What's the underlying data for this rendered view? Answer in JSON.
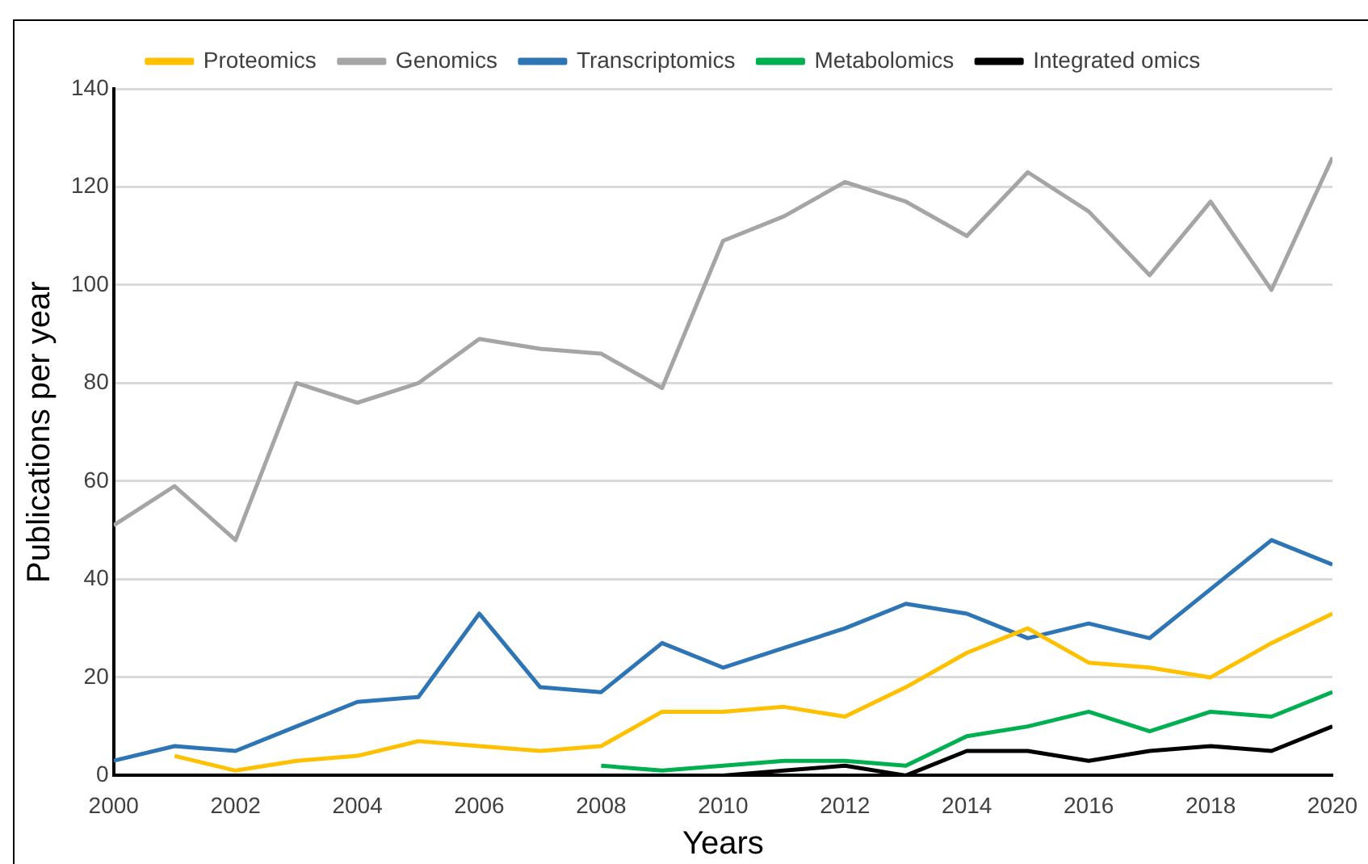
{
  "chart_data": {
    "type": "line",
    "xlabel": "Years",
    "ylabel": "Publications per year",
    "x": [
      2000,
      2001,
      2002,
      2003,
      2004,
      2005,
      2006,
      2007,
      2008,
      2009,
      2010,
      2011,
      2012,
      2013,
      2014,
      2015,
      2016,
      2017,
      2018,
      2019,
      2020
    ],
    "xlim": [
      2000,
      2020
    ],
    "xticks": [
      2000,
      2002,
      2004,
      2006,
      2008,
      2010,
      2012,
      2014,
      2016,
      2018,
      2020
    ],
    "ylim": [
      0,
      140
    ],
    "yticks": [
      0,
      20,
      40,
      60,
      80,
      100,
      120,
      140
    ],
    "grid": "y",
    "legend": "top",
    "marker": "none",
    "line_style": "solid",
    "series": [
      {
        "name": "Proteomics",
        "color": "#ffc000",
        "values": [
          null,
          4,
          1,
          3,
          4,
          7,
          6,
          5,
          6,
          13,
          13,
          14,
          12,
          18,
          25,
          30,
          23,
          22,
          20,
          27,
          33
        ]
      },
      {
        "name": "Genomics",
        "color": "#a5a5a5",
        "values": [
          51,
          59,
          48,
          80,
          76,
          80,
          89,
          87,
          86,
          79,
          109,
          114,
          121,
          117,
          110,
          123,
          115,
          102,
          117,
          99,
          126
        ]
      },
      {
        "name": "Transcriptomics",
        "color": "#2e75b6",
        "values": [
          3,
          6,
          5,
          10,
          15,
          16,
          33,
          18,
          17,
          27,
          22,
          26,
          30,
          35,
          33,
          28,
          31,
          28,
          38,
          48,
          43
        ]
      },
      {
        "name": "Metabolomics",
        "color": "#00b050",
        "values": [
          null,
          null,
          null,
          null,
          null,
          null,
          null,
          null,
          2,
          1,
          2,
          3,
          3,
          2,
          8,
          10,
          13,
          9,
          13,
          12,
          17
        ]
      },
      {
        "name": "Integrated omics",
        "color": "#000000",
        "values": [
          null,
          null,
          null,
          null,
          null,
          null,
          null,
          null,
          null,
          0,
          0,
          1,
          2,
          0,
          5,
          5,
          3,
          5,
          6,
          5,
          10
        ]
      }
    ]
  }
}
